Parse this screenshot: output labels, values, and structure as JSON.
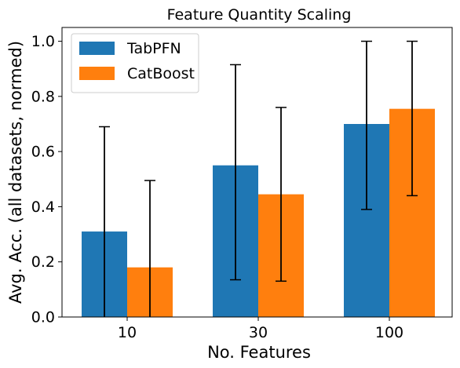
{
  "chart_data": {
    "type": "bar",
    "title": "Feature Quantity Scaling",
    "xlabel": "No. Features",
    "ylabel": "Avg. Acc. (all datasets, normed)",
    "categories": [
      "10",
      "30",
      "100"
    ],
    "series": [
      {
        "name": "TabPFN",
        "color": "#1f77b4",
        "values": [
          0.31,
          0.55,
          0.7
        ],
        "err_low": [
          0.0,
          0.135,
          0.39
        ],
        "err_high": [
          0.69,
          0.915,
          1.0
        ]
      },
      {
        "name": "CatBoost",
        "color": "#ff7f0e",
        "values": [
          0.18,
          0.445,
          0.755
        ],
        "err_low": [
          0.0,
          0.13,
          0.44
        ],
        "err_high": [
          0.495,
          0.76,
          1.0
        ]
      }
    ],
    "ylim": [
      0,
      1.05
    ],
    "yticks": [
      "0.0",
      "0.2",
      "0.4",
      "0.6",
      "0.8",
      "1.0"
    ],
    "legend_position": "top-left",
    "grid": false
  }
}
